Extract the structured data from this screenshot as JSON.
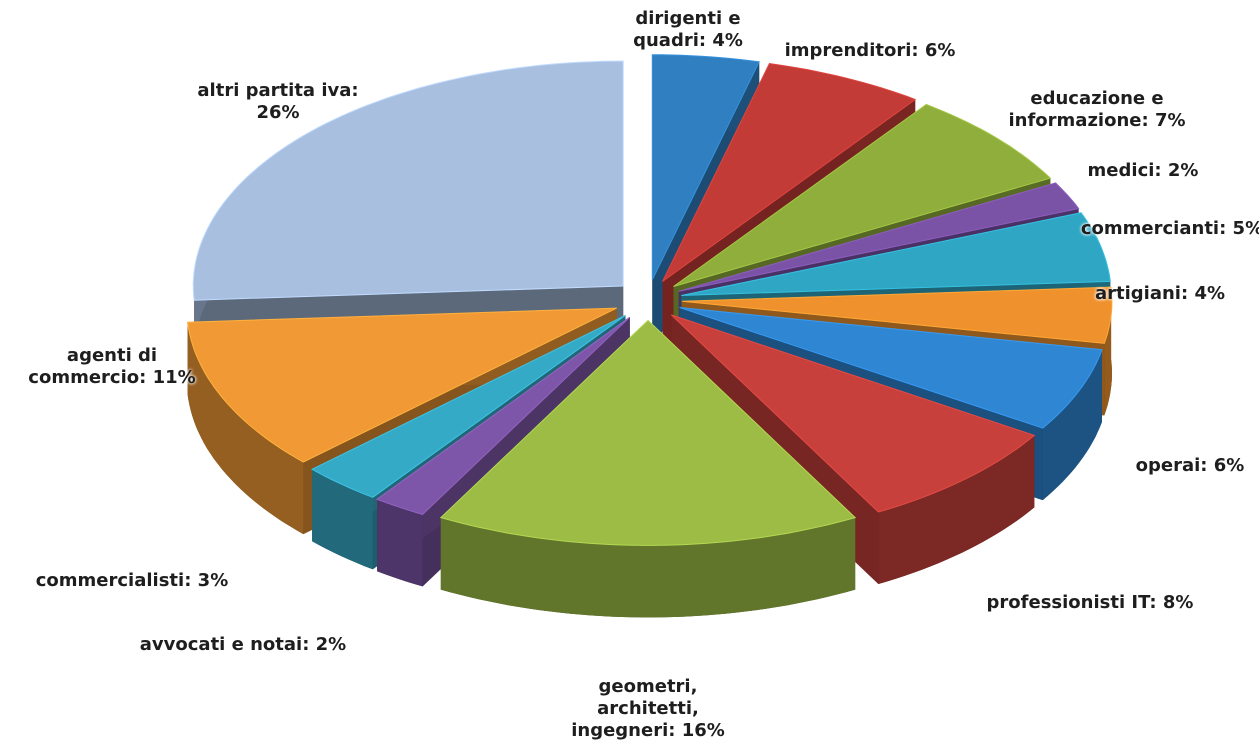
{
  "chart_data": {
    "type": "pie",
    "three_d": true,
    "exploded": true,
    "categories": [
      "dirigenti e quadri: 4%",
      "imprenditori: 6%",
      "educazione e informazione: 7%",
      "medici: 2%",
      "commercianti: 5%",
      "artigiani: 4%",
      "operai: 6%",
      "professionisti IT: 8%",
      "geometri, architetti, ingegneri: 16%",
      "avvocati e notai: 2%",
      "commercialisti: 3%",
      "agenti di commercio: 11%",
      "altri partita iva: 26%"
    ],
    "values": [
      4,
      6,
      7,
      2,
      5,
      4,
      6,
      8,
      16,
      2,
      3,
      11,
      26
    ],
    "colors": [
      "#2f7fc1",
      "#c33b36",
      "#8fae3c",
      "#7a52a6",
      "#2fa7c4",
      "#ef922e",
      "#2f86d3",
      "#c8403b",
      "#9cbc46",
      "#7e56a9",
      "#35aac7",
      "#f19a35",
      "#a8bfe0"
    ]
  }
}
